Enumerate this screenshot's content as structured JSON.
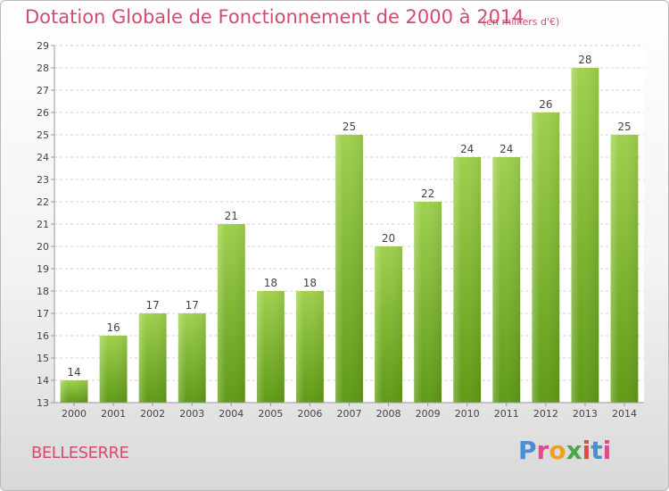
{
  "header": {
    "title": "Dotation Globale de Fonctionnement de 2000 à 2014",
    "subtitle": "(en milliers d'€)"
  },
  "footer": {
    "commune": "BELLESERRE",
    "logo_text": "Proxiti"
  },
  "colors": {
    "title": "#d64a6e",
    "bar_light": "#9fd14e",
    "bar_dark": "#5f9a16",
    "logo": [
      "#4a8fd6",
      "#e04b8a",
      "#f0a020",
      "#4aa84a",
      "#e04b3a",
      "#4a8fd6",
      "#e04b8a"
    ]
  },
  "chart_data": {
    "type": "bar",
    "title": "Dotation Globale de Fonctionnement de 2000 à 2014",
    "subtitle": "(en milliers d'€)",
    "categories": [
      "2000",
      "2001",
      "2002",
      "2003",
      "2004",
      "2005",
      "2006",
      "2007",
      "2008",
      "2009",
      "2010",
      "2011",
      "2012",
      "2013",
      "2014"
    ],
    "values": [
      14,
      16,
      17,
      17,
      21,
      18,
      18,
      25,
      20,
      22,
      24,
      24,
      26,
      28,
      25
    ],
    "ylim": [
      13,
      29
    ],
    "yticks": [
      13,
      14,
      15,
      16,
      17,
      18,
      19,
      20,
      21,
      22,
      23,
      24,
      25,
      26,
      27,
      28,
      29
    ],
    "grid": true,
    "data_labels": true
  }
}
